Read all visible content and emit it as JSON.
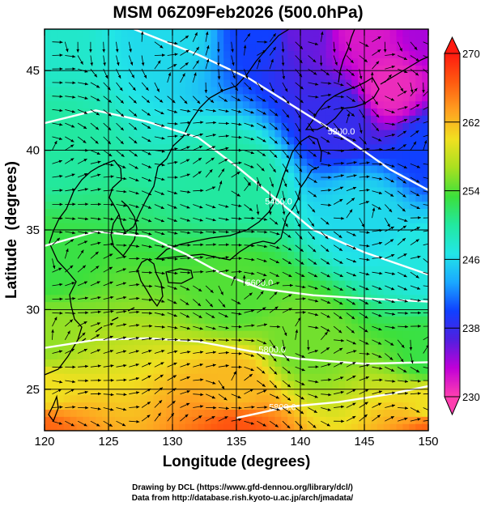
{
  "chart_data": {
    "type": "heatmap",
    "title": "MSM 06Z09Feb2026 (500.0hPa)",
    "xlabel": "Longitude (degrees)",
    "ylabel": "Latitude  (degrees)",
    "xlim": [
      120,
      150
    ],
    "ylim": [
      22.4,
      47.6
    ],
    "x_ticks": [
      "120",
      "125",
      "130",
      "135",
      "140",
      "145",
      "150"
    ],
    "x_tick_values": [
      120,
      125,
      130,
      135,
      140,
      145,
      150
    ],
    "y_ticks": [
      "25",
      "30",
      "35",
      "40",
      "45"
    ],
    "y_tick_values": [
      25,
      30,
      35,
      40,
      45
    ],
    "colorbar": {
      "min": 230,
      "max": 270,
      "ticks": [
        "230",
        "238",
        "246",
        "254",
        "262",
        "270"
      ],
      "tick_values": [
        230,
        238,
        246,
        254,
        262,
        270
      ],
      "colors": [
        "#ff3fb0",
        "#c000d8",
        "#5020e0",
        "#1040ff",
        "#1aa8ff",
        "#22e6e6",
        "#22e8a0",
        "#3ce03c",
        "#a8e020",
        "#f0e020",
        "#ffa020",
        "#ff5a10",
        "#ff1a10"
      ]
    },
    "field_anchors": [
      {
        "lon": 120,
        "lat": 47.6,
        "value": 248
      },
      {
        "lon": 130,
        "lat": 47.6,
        "value": 246
      },
      {
        "lon": 137,
        "lat": 47.6,
        "value": 240
      },
      {
        "lon": 140,
        "lat": 47.6,
        "value": 236
      },
      {
        "lon": 145,
        "lat": 47.6,
        "value": 232
      },
      {
        "lon": 150,
        "lat": 47.6,
        "value": 234
      },
      {
        "lon": 147,
        "lat": 44,
        "value": 231
      },
      {
        "lon": 143,
        "lat": 42,
        "value": 238
      },
      {
        "lon": 150,
        "lat": 40,
        "value": 240
      },
      {
        "lon": 120,
        "lat": 40,
        "value": 250
      },
      {
        "lon": 135,
        "lat": 38,
        "value": 250
      },
      {
        "lon": 145,
        "lat": 36,
        "value": 246
      },
      {
        "lon": 150,
        "lat": 33,
        "value": 247
      },
      {
        "lon": 120,
        "lat": 33,
        "value": 253
      },
      {
        "lon": 135,
        "lat": 31,
        "value": 254
      },
      {
        "lon": 120,
        "lat": 28,
        "value": 256
      },
      {
        "lon": 140,
        "lat": 28,
        "value": 255
      },
      {
        "lon": 150,
        "lat": 27,
        "value": 253
      },
      {
        "lon": 120,
        "lat": 25,
        "value": 260
      },
      {
        "lon": 135,
        "lat": 25,
        "value": 262
      },
      {
        "lon": 150,
        "lat": 24,
        "value": 260
      },
      {
        "lon": 120,
        "lat": 22.4,
        "value": 266
      },
      {
        "lon": 135,
        "lat": 22.4,
        "value": 267
      },
      {
        "lon": 150,
        "lat": 22.4,
        "value": 266
      }
    ],
    "contours": [
      {
        "label": "5200.0",
        "points": [
          [
            127,
            47.6
          ],
          [
            132,
            46
          ],
          [
            136,
            44.5
          ],
          [
            140,
            42.5
          ],
          [
            144,
            40.5
          ],
          [
            147,
            38.8
          ],
          [
            150,
            37.5
          ]
        ],
        "label_at": [
          143.2,
          41.0
        ]
      },
      {
        "label": "5400.0",
        "points": [
          [
            120,
            41.7
          ],
          [
            124,
            42.5
          ],
          [
            128,
            41.8
          ],
          [
            132,
            40.8
          ],
          [
            135,
            39
          ],
          [
            138,
            37
          ],
          [
            141,
            35
          ],
          [
            145,
            33.6
          ],
          [
            150,
            32.2
          ]
        ],
        "label_at": [
          138.3,
          36.6
        ]
      },
      {
        "label": "5600.0",
        "points": [
          [
            120,
            34.0
          ],
          [
            124,
            34.9
          ],
          [
            128,
            34.6
          ],
          [
            131,
            33.5
          ],
          [
            134,
            32.2
          ],
          [
            137,
            31.3
          ],
          [
            141,
            30.9
          ],
          [
            145,
            30.7
          ],
          [
            150,
            30.5
          ]
        ],
        "label_at": [
          136.8,
          31.5
        ]
      },
      {
        "label": "5800.0",
        "points": [
          [
            120,
            27.6
          ],
          [
            124,
            28.1
          ],
          [
            128,
            28.2
          ],
          [
            132,
            28.0
          ],
          [
            136,
            27.4
          ],
          [
            140,
            26.9
          ],
          [
            145,
            26.6
          ],
          [
            150,
            26.7
          ]
        ],
        "label_at": [
          137.8,
          27.3
        ]
      },
      {
        "label": "5800.0",
        "points": [
          [
            135,
            23.2
          ],
          [
            139,
            23.9
          ],
          [
            143,
            24.2
          ],
          [
            147,
            24.7
          ],
          [
            150,
            25.2
          ]
        ],
        "label_at": [
          138.6,
          23.7
        ]
      }
    ],
    "annotations": [
      "5200.0",
      "5400.0",
      "5600.0",
      "5800.0",
      "5800.0"
    ],
    "grid": true
  },
  "credits": {
    "line1": "Drawing by DCL (https://www.gfd-dennou.org/library/dcl/)",
    "line2": "Data from http://database.rish.kyoto-u.ac.jp/arch/jmadata/"
  }
}
